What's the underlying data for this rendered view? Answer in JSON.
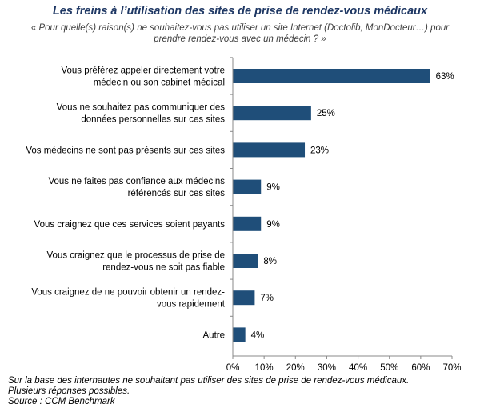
{
  "chart_data": {
    "type": "bar",
    "orientation": "horizontal",
    "title": "Les freins à l’utilisation des sites de prise de rendez-vous médicaux",
    "subtitle": "« Pour quelle(s) raison(s) ne souhaitez-vous pas utiliser un site Internet (Doctolib, MonDocteur…) pour prendre rendez-vous avec un médecin ? »",
    "categories": [
      [
        "Vous préférez appeler directement votre",
        "médecin ou son cabinet médical"
      ],
      [
        "Vous ne souhaitez pas communiquer des",
        "données personnelles sur ces sites"
      ],
      [
        "Vos médecins ne sont pas présents sur ces sites"
      ],
      [
        "Vous ne faites pas confiance aux médecins",
        "référencés sur ces sites"
      ],
      [
        "Vous craignez que ces services soient payants"
      ],
      [
        "Vous craignez que le processus de prise de",
        "rendez-vous ne soit pas fiable"
      ],
      [
        "Vous craignez de ne pouvoir obtenir un rendez-",
        "vous rapidement"
      ],
      [
        "Autre"
      ]
    ],
    "values": [
      63,
      25,
      23,
      9,
      9,
      8,
      7,
      4
    ],
    "value_labels": [
      "63%",
      "25%",
      "23%",
      "9%",
      "9%",
      "8%",
      "7%",
      "4%"
    ],
    "xlim": [
      0,
      70
    ],
    "xticks": [
      0,
      10,
      20,
      30,
      40,
      50,
      60,
      70
    ],
    "xtick_labels": [
      "0%",
      "10%",
      "20%",
      "30%",
      "40%",
      "50%",
      "60%",
      "70%"
    ],
    "grid": false,
    "bar_color": "#1f4e79"
  },
  "footnote": {
    "line1": "Sur la base des internautes ne souhaitant pas utiliser des sites de prise de rendez-vous médicaux.",
    "line2": "Plusieurs réponses possibles.",
    "line3": "Source : CCM Benchmark"
  }
}
